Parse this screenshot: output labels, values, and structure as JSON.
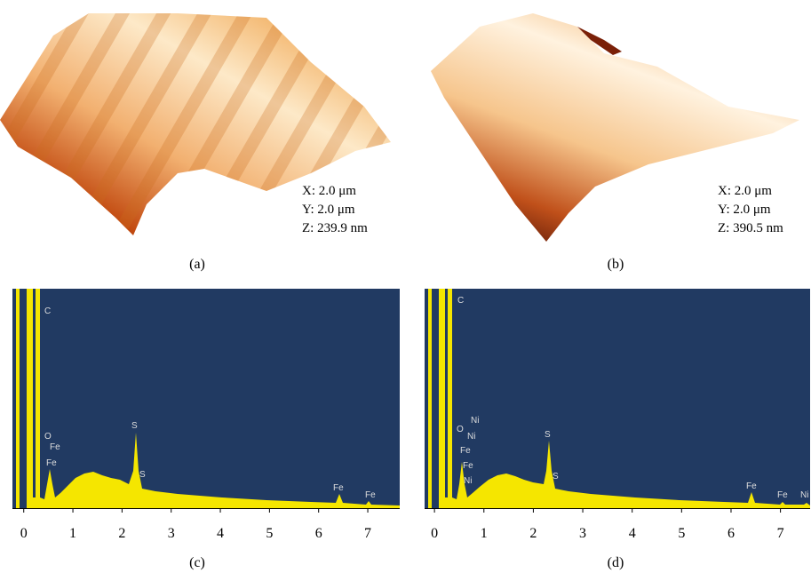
{
  "panels": [
    {
      "label": "(a)",
      "info": [
        "X: 2.0 μm",
        "Y: 2.0 μm",
        "Z: 239.9 nm"
      ]
    },
    {
      "label": "(b)",
      "info": [
        "X: 2.0 μm",
        "Y: 2.0 μm",
        "Z: 390.5 nm"
      ]
    }
  ],
  "spectra": [
    {
      "label": "(c)",
      "xlim": [
        -0.23,
        7.65
      ],
      "xticks": [
        0,
        1,
        2,
        3,
        4,
        5,
        6,
        7
      ],
      "peaks": [
        "C",
        "O",
        "Fe",
        "Fe",
        "S",
        "S",
        "Fe",
        "Fe"
      ]
    },
    {
      "label": "(d)",
      "xlim": [
        -0.2,
        7.6
      ],
      "xticks": [
        0,
        1,
        2,
        3,
        4,
        5,
        6,
        7
      ],
      "peaks": [
        "C",
        "Ni",
        "O",
        "Ni",
        "Fe",
        "Fe",
        "Ni",
        "S",
        "S",
        "Fe",
        "Fe",
        "Ni"
      ]
    }
  ]
}
